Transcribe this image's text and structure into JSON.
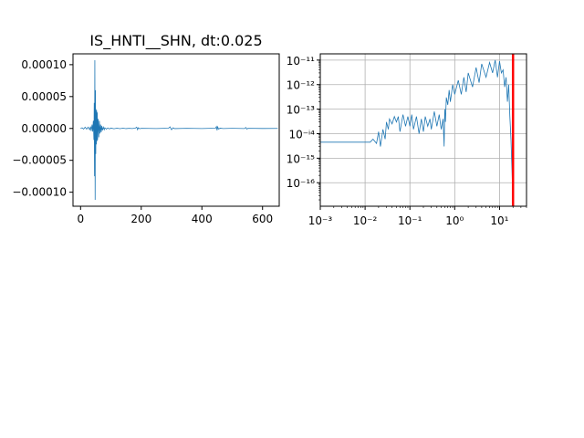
{
  "chart_data": [
    {
      "type": "line",
      "title": "IS_HNTI__SHN, dt:0.025",
      "xlabel": "",
      "ylabel": "",
      "xlim": [
        -25,
        655
      ],
      "ylim": [
        -0.000122,
        0.000117
      ],
      "x_ticks": [
        0,
        200,
        400,
        600
      ],
      "x_tick_labels": [
        "0",
        "200",
        "400",
        "600"
      ],
      "y_ticks": [
        0.0001,
        5e-05,
        0.0,
        -5e-05,
        -0.0001
      ],
      "y_tick_labels": [
        "0.00010",
        "0.00005",
        "0.00000",
        "−0.00005",
        "−0.00010"
      ],
      "grid": false,
      "series": [
        {
          "color": "#1f77b4",
          "x": [
            0,
            5,
            10,
            15,
            20,
            25,
            30,
            33,
            35,
            38,
            40,
            42,
            44,
            45,
            46,
            47,
            48,
            49,
            50,
            51,
            52,
            53,
            54,
            55,
            56,
            58,
            60,
            62,
            64,
            66,
            68,
            70,
            72,
            75,
            78,
            80,
            85,
            90,
            95,
            100,
            110,
            120,
            130,
            140,
            150,
            160,
            170,
            180,
            185,
            188,
            190,
            195,
            200,
            250,
            290,
            295,
            300,
            305,
            310,
            350,
            400,
            445,
            448,
            450,
            452,
            455,
            460,
            470,
            500,
            540,
            545,
            548,
            552,
            600,
            650
          ],
          "values": [
            0.0,
            1e-06,
            -1e-06,
            2e-06,
            -1e-06,
            2e-06,
            -2e-06,
            3e-06,
            -4e-06,
            6e-06,
            -5e-06,
            1.2e-05,
            -1.8e-05,
            4e-05,
            -7.5e-05,
            0.000107,
            -0.000112,
            6e-05,
            -4e-05,
            3e-05,
            -2.5e-05,
            2.8e-05,
            -2e-05,
            2.5e-05,
            -1.8e-05,
            1.5e-05,
            -1.4e-05,
            1.2e-05,
            -8e-06,
            6e-06,
            -6e-06,
            4e-06,
            -3e-06,
            2e-06,
            -2e-06,
            1e-06,
            -1e-06,
            8e-07,
            -8e-07,
            6e-07,
            -5e-07,
            4e-07,
            -4e-07,
            3e-07,
            -3e-07,
            2e-07,
            -2e-07,
            3e-07,
            2e-06,
            -2e-06,
            1e-06,
            -5e-07,
            2e-07,
            -2e-07,
            3e-07,
            2.5e-06,
            -2e-06,
            1e-06,
            -3e-07,
            2e-07,
            -2e-07,
            4e-07,
            3e-06,
            -3e-06,
            2.5e-06,
            -1e-06,
            4e-07,
            -2e-07,
            2e-07,
            -2e-07,
            1.5e-06,
            -1e-06,
            2e-07,
            -1e-07,
            0.0
          ]
        }
      ]
    },
    {
      "type": "line",
      "title": "",
      "xlabel": "",
      "ylabel": "",
      "xscale": "log",
      "yscale": "log",
      "xlim": [
        0.001,
        40
      ],
      "ylim": [
        1.1e-17,
        1.8e-11
      ],
      "x_ticks": [
        0.001,
        0.01,
        0.1,
        1,
        10
      ],
      "x_tick_labels": [
        "10⁻³",
        "10⁻²",
        "10⁻¹",
        "10⁰",
        "10¹"
      ],
      "y_ticks": [
        1e-11,
        1e-12,
        1e-13,
        1e-14,
        1e-15,
        1e-16
      ],
      "y_tick_labels": [
        "10⁻¹¹",
        "10⁻¹²",
        "10⁻¹³",
        "10⁻ⁱ⁴",
        "10⁻¹⁵",
        "10⁻¹⁶"
      ],
      "grid": true,
      "series": [
        {
          "color": "#1f77b4",
          "x": [
            0.001,
            0.002,
            0.005,
            0.01,
            0.013,
            0.015,
            0.018,
            0.02,
            0.022,
            0.025,
            0.028,
            0.03,
            0.033,
            0.035,
            0.04,
            0.045,
            0.05,
            0.055,
            0.06,
            0.07,
            0.08,
            0.09,
            0.1,
            0.11,
            0.12,
            0.14,
            0.16,
            0.18,
            0.2,
            0.22,
            0.25,
            0.28,
            0.3,
            0.35,
            0.4,
            0.45,
            0.5,
            0.55,
            0.58,
            0.6,
            0.62,
            0.65,
            0.7,
            0.75,
            0.8,
            0.9,
            1.0,
            1.2,
            1.4,
            1.6,
            1.8,
            2.0,
            2.5,
            3.0,
            3.5,
            4.0,
            5.0,
            6.0,
            7.0,
            8.0,
            9.0,
            10.0,
            11.0,
            12.0,
            13.0,
            14.0,
            15.0,
            16.0,
            17.0,
            18.0,
            19.0,
            20.0
          ],
          "values": [
            4.5e-15,
            4.5e-15,
            4.5e-15,
            4.5e-15,
            4.5e-15,
            6e-15,
            4e-15,
            1.2e-14,
            3e-15,
            1.5e-14,
            6e-15,
            3e-14,
            1.5e-14,
            4e-14,
            2.5e-14,
            5e-14,
            3e-14,
            5e-14,
            1.2e-14,
            6e-14,
            2e-14,
            5e-14,
            2e-14,
            6e-14,
            1.5e-14,
            5e-14,
            1e-14,
            4e-14,
            1.2e-14,
            5e-14,
            2e-14,
            4e-14,
            1.5e-14,
            8e-14,
            2e-14,
            6e-14,
            1.5e-14,
            4e-14,
            3e-15,
            1e-13,
            3e-14,
            3e-13,
            1.5e-13,
            6e-13,
            2e-13,
            1e-12,
            4e-13,
            1.5e-12,
            4e-13,
            2e-12,
            5e-13,
            3e-12,
            8e-13,
            5e-12,
            1.2e-12,
            7e-12,
            2e-12,
            8e-12,
            3e-12,
            1e-11,
            2e-12,
            9e-12,
            3e-12,
            4e-12,
            8e-13,
            2e-12,
            2e-13,
            1e-12,
            5e-14,
            6e-15,
            3e-16,
            1.2e-17
          ]
        }
      ],
      "vline": {
        "x": 20,
        "color": "#ff0000"
      }
    }
  ]
}
